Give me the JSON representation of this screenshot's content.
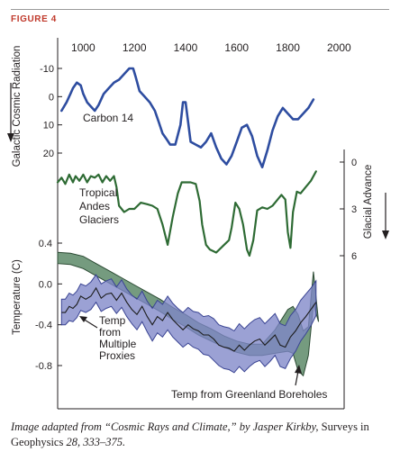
{
  "figure_label": "FIGURE 4",
  "caption": {
    "part1": "Image adapted from “Cosmic Rays and Climate,” by Jasper Kirkby, ",
    "part2": "Surveys in Geophysics",
    "part3": " 28, 333–375."
  },
  "colors": {
    "cosmic": "#2e4da0",
    "glacier": "#2e6b34",
    "band_fill": "#7f86c8",
    "band_stroke": "#3a4493",
    "greenland_fill": "#5d8a68",
    "greenland_stroke": "#2b4a33",
    "axis": "#231f20"
  },
  "chart_data": {
    "type": "line",
    "x_axis": {
      "ticks": [
        1000,
        1200,
        1400,
        1600,
        1800,
        2000
      ],
      "range": [
        900,
        2020
      ],
      "position": "top"
    },
    "panels": [
      {
        "id": "cosmic",
        "axis_label": "Galactic Cosmic Radiation",
        "axis_side": "left",
        "ticks": [
          -10,
          0,
          10,
          20
        ],
        "ylim": [
          -14,
          24
        ],
        "inverted": true,
        "series": [
          {
            "name": "Carbon 14",
            "x": [
              915,
              935,
              950,
              960,
              975,
              990,
              1000,
              1015,
              1025,
              1045,
              1060,
              1080,
              1100,
              1120,
              1140,
              1160,
              1180,
              1195,
              1205,
              1220,
              1240,
              1260,
              1280,
              1295,
              1310,
              1325,
              1340,
              1360,
              1380,
              1390,
              1400,
              1410,
              1420,
              1440,
              1460,
              1480,
              1500,
              1520,
              1540,
              1560,
              1580,
              1600,
              1620,
              1640,
              1660,
              1680,
              1700,
              1720,
              1740,
              1760,
              1780,
              1800,
              1820,
              1840,
              1860,
              1880,
              1900
            ],
            "y": [
              5,
              2,
              -1,
              -3,
              -5,
              -4,
              -1,
              2,
              3,
              5,
              3,
              -1,
              -3,
              -5,
              -6,
              -8,
              -10,
              -10,
              -7,
              -2,
              0,
              2,
              5,
              9,
              13,
              15,
              17,
              17,
              10,
              2,
              2,
              9,
              16,
              17,
              18,
              16,
              13,
              18,
              22,
              24,
              21,
              16,
              11,
              10,
              14,
              21,
              25,
              19,
              12,
              7,
              4,
              6,
              8,
              8,
              6,
              4,
              1
            ]
          }
        ]
      },
      {
        "id": "glacier",
        "axis_label": "Glacial Advance",
        "axis_side": "right",
        "ticks": [
          0,
          3,
          6
        ],
        "ylim": [
          -0.5,
          6.5
        ],
        "series": [
          {
            "name": "Tropical Andes Glaciers",
            "x": [
              900,
              915,
              930,
              945,
              960,
              970,
              985,
              1000,
              1015,
              1030,
              1045,
              1060,
              1075,
              1090,
              1105,
              1120,
              1130,
              1140,
              1160,
              1180,
              1200,
              1225,
              1250,
              1270,
              1290,
              1310,
              1330,
              1350,
              1370,
              1385,
              1400,
              1420,
              1440,
              1455,
              1465,
              1480,
              1495,
              1520,
              1545,
              1570,
              1580,
              1595,
              1610,
              1625,
              1640,
              1650,
              1665,
              1680,
              1700,
              1720,
              1740,
              1760,
              1775,
              1790,
              1800,
              1810,
              1820,
              1835,
              1850,
              1870,
              1890,
              1910
            ],
            "y": [
              1.3,
              1.0,
              1.4,
              0.8,
              1.3,
              0.9,
              1.2,
              0.8,
              1.3,
              0.9,
              1.0,
              0.8,
              1.3,
              0.9,
              1.2,
              0.9,
              1.6,
              2.8,
              3.2,
              3.0,
              3.0,
              2.6,
              2.7,
              2.8,
              3.0,
              4.0,
              5.3,
              3.5,
              2.0,
              1.3,
              1.3,
              1.3,
              1.4,
              2.5,
              4.0,
              5.3,
              5.6,
              5.8,
              5.4,
              5.0,
              4.2,
              2.6,
              3.0,
              4.0,
              5.6,
              6.0,
              5.0,
              3.1,
              2.9,
              3.0,
              2.8,
              2.4,
              2.1,
              2.4,
              4.5,
              5.5,
              3.2,
              1.9,
              2.0,
              1.6,
              1.2,
              0.6
            ]
          }
        ]
      },
      {
        "id": "temperature",
        "axis_label": "Temperature (C)",
        "axis_side": "left",
        "ticks": [
          "0.4",
          "0.0",
          "-0.4",
          "-0.8"
        ],
        "tick_values": [
          0.4,
          0.0,
          -0.4,
          -0.8
        ],
        "ylim": [
          -1.1,
          0.58
        ],
        "series": [
          {
            "name": "Temp from Multiple Proxies",
            "kind": "line_with_band",
            "x": [
              915,
              930,
              945,
              960,
              975,
              990,
              1010,
              1030,
              1050,
              1070,
              1090,
              1110,
              1130,
              1150,
              1170,
              1190,
              1210,
              1230,
              1250,
              1270,
              1290,
              1310,
              1330,
              1350,
              1370,
              1390,
              1410,
              1430,
              1450,
              1470,
              1490,
              1510,
              1530,
              1550,
              1570,
              1590,
              1610,
              1630,
              1650,
              1670,
              1690,
              1710,
              1730,
              1750,
              1770,
              1790,
              1810,
              1830,
              1850,
              1870,
              1890,
              1910
            ],
            "y": [
              -0.28,
              -0.28,
              -0.22,
              -0.24,
              -0.2,
              -0.12,
              -0.15,
              -0.12,
              -0.04,
              -0.14,
              -0.1,
              -0.09,
              -0.16,
              -0.09,
              -0.18,
              -0.25,
              -0.3,
              -0.22,
              -0.32,
              -0.4,
              -0.32,
              -0.36,
              -0.28,
              -0.35,
              -0.4,
              -0.45,
              -0.4,
              -0.44,
              -0.46,
              -0.5,
              -0.5,
              -0.54,
              -0.6,
              -0.62,
              -0.63,
              -0.66,
              -0.6,
              -0.65,
              -0.6,
              -0.56,
              -0.54,
              -0.6,
              -0.55,
              -0.5,
              -0.6,
              -0.62,
              -0.52,
              -0.46,
              -0.38,
              -0.32,
              -0.25,
              -0.18
            ],
            "lower": [
              -0.4,
              -0.4,
              -0.36,
              -0.37,
              -0.33,
              -0.26,
              -0.28,
              -0.25,
              -0.18,
              -0.27,
              -0.24,
              -0.22,
              -0.29,
              -0.23,
              -0.32,
              -0.39,
              -0.45,
              -0.37,
              -0.47,
              -0.56,
              -0.48,
              -0.52,
              -0.45,
              -0.52,
              -0.57,
              -0.62,
              -0.58,
              -0.62,
              -0.64,
              -0.69,
              -0.7,
              -0.75,
              -0.8,
              -0.83,
              -0.84,
              -0.87,
              -0.81,
              -0.86,
              -0.81,
              -0.77,
              -0.75,
              -0.81,
              -0.76,
              -0.7,
              -0.81,
              -0.83,
              -0.73,
              -0.66,
              -0.56,
              -0.49,
              -0.41,
              -0.31
            ],
            "upper": [
              -0.15,
              -0.15,
              -0.09,
              -0.11,
              -0.07,
              0.0,
              -0.02,
              0.02,
              0.09,
              0.0,
              0.03,
              0.05,
              -0.03,
              0.04,
              -0.05,
              -0.11,
              -0.15,
              -0.07,
              -0.17,
              -0.24,
              -0.16,
              -0.2,
              -0.12,
              -0.19,
              -0.24,
              -0.28,
              -0.23,
              -0.27,
              -0.28,
              -0.32,
              -0.31,
              -0.34,
              -0.4,
              -0.42,
              -0.43,
              -0.46,
              -0.39,
              -0.44,
              -0.39,
              -0.35,
              -0.33,
              -0.39,
              -0.34,
              -0.29,
              -0.39,
              -0.41,
              -0.31,
              -0.25,
              -0.16,
              -0.1,
              -0.04,
              0.03
            ]
          },
          {
            "name": "Temp from Greenland Boreholes",
            "kind": "band",
            "x": [
              900,
              950,
              1000,
              1050,
              1100,
              1150,
              1200,
              1250,
              1300,
              1350,
              1400,
              1450,
              1500,
              1550,
              1600,
              1650,
              1700,
              1750,
              1800,
              1820,
              1840,
              1860,
              1880,
              1900,
              1920
            ],
            "lower": [
              0.2,
              0.19,
              0.15,
              0.08,
              0.01,
              -0.06,
              -0.13,
              -0.2,
              -0.27,
              -0.35,
              -0.42,
              -0.5,
              -0.56,
              -0.62,
              -0.67,
              -0.7,
              -0.7,
              -0.68,
              -0.66,
              -0.68,
              -0.85,
              -0.9,
              -0.7,
              -0.2,
              -0.37
            ],
            "upper": [
              0.31,
              0.3,
              0.27,
              0.2,
              0.13,
              0.06,
              -0.01,
              -0.08,
              -0.15,
              -0.23,
              -0.3,
              -0.38,
              -0.44,
              -0.51,
              -0.56,
              -0.59,
              -0.59,
              -0.45,
              -0.25,
              -0.22,
              -0.3,
              -0.46,
              -0.42,
              0.12,
              -0.37
            ]
          }
        ]
      }
    ],
    "labels": {
      "carbon14": "Carbon 14",
      "andes": [
        "Tropical",
        "Andes",
        "Glaciers"
      ],
      "proxies": [
        "Temp",
        "from",
        "Multiple",
        "Proxies"
      ],
      "greenland": "Temp from Greenland Boreholes"
    },
    "xlabel": "",
    "grid": false
  }
}
